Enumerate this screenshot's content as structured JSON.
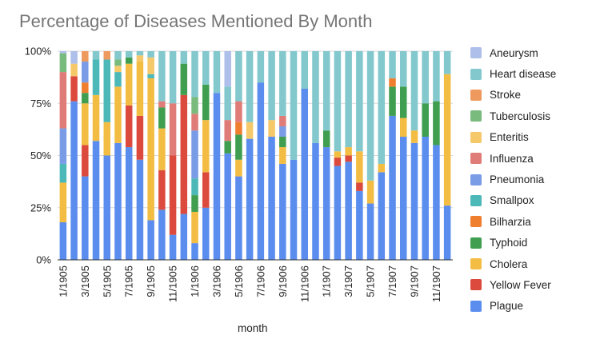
{
  "chart_data": {
    "type": "bar",
    "stacked": "percent",
    "title": "Percentage of Diseases Mentioned By Month",
    "xlabel": "month",
    "ylabel": "",
    "ylim": [
      0,
      100
    ],
    "y_ticks": [
      "0%",
      "25%",
      "50%",
      "75%",
      "100%"
    ],
    "x_tick_labels": [
      "1/1905",
      "3/1905",
      "5/1905",
      "7/1905",
      "9/1905",
      "11/1905",
      "1/1906",
      "3/1906",
      "5/1906",
      "7/1906",
      "9/1906",
      "11/1906",
      "1/1907",
      "3/1907",
      "5/1907",
      "7/1907",
      "9/1907",
      "11/1907"
    ],
    "categories": [
      "1/1905",
      "2/1905",
      "3/1905",
      "4/1905",
      "5/1905",
      "6/1905",
      "7/1905",
      "8/1905",
      "9/1905",
      "10/1905",
      "11/1905",
      "12/1905",
      "1/1906",
      "2/1906",
      "3/1906",
      "4/1906",
      "5/1906",
      "6/1906",
      "7/1906",
      "8/1906",
      "9/1906",
      "10/1906",
      "11/1906",
      "12/1906",
      "1/1907",
      "2/1907",
      "3/1907",
      "4/1907",
      "5/1907",
      "6/1907",
      "7/1907",
      "8/1907",
      "9/1907",
      "10/1907",
      "11/1907",
      "12/1907"
    ],
    "legend_position": "right",
    "grid": true,
    "series": [
      {
        "name": "Plague",
        "color": "#5b8def",
        "values": [
          18,
          76,
          40,
          57,
          50,
          56,
          54,
          48,
          19,
          24,
          12,
          22,
          8,
          25,
          80,
          51,
          40,
          58,
          85,
          59,
          46,
          48,
          82,
          56,
          54,
          45,
          47,
          33,
          27,
          42,
          69,
          59,
          56,
          59,
          55,
          26
        ]
      },
      {
        "name": "Yellow Fever",
        "color": "#dc4a3d",
        "values": [
          0,
          12,
          15,
          0,
          0,
          0,
          20,
          21,
          0,
          19,
          38,
          57,
          0,
          17,
          0,
          0,
          0,
          0,
          0,
          0,
          0,
          0,
          0,
          0,
          0,
          4,
          3,
          4,
          0,
          0,
          0,
          0,
          0,
          0,
          0,
          0
        ]
      },
      {
        "name": "Cholera",
        "color": "#f2bd42",
        "values": [
          19,
          0,
          20,
          22,
          16,
          27,
          20,
          26,
          68,
          20,
          0,
          0,
          15,
          25,
          0,
          0,
          8,
          0,
          0,
          0,
          8,
          0,
          0,
          0,
          0,
          3,
          4,
          15,
          11,
          4,
          0,
          9,
          6,
          0,
          0,
          63
        ]
      },
      {
        "name": "Typhoid",
        "color": "#3f9e50",
        "values": [
          0,
          0,
          5,
          0,
          0,
          0,
          3,
          0,
          0,
          10,
          0,
          15,
          8,
          17,
          0,
          6,
          12,
          0,
          0,
          0,
          5,
          0,
          0,
          0,
          8,
          0,
          0,
          0,
          0,
          0,
          14,
          15,
          0,
          16,
          21,
          0
        ]
      },
      {
        "name": "Bilharzia",
        "color": "#f07e2f",
        "values": [
          0,
          0,
          5,
          0,
          0,
          0,
          0,
          0,
          0,
          0,
          0,
          0,
          0,
          0,
          0,
          0,
          6,
          0,
          0,
          0,
          0,
          0,
          0,
          0,
          0,
          0,
          0,
          0,
          0,
          0,
          4,
          0,
          0,
          0,
          0,
          0
        ]
      },
      {
        "name": "Smallpox",
        "color": "#4cb8b8",
        "values": [
          9,
          0,
          0,
          17,
          30,
          7,
          0,
          0,
          2,
          0,
          0,
          0,
          8,
          0,
          0,
          0,
          0,
          0,
          0,
          0,
          0,
          0,
          0,
          0,
          0,
          0,
          0,
          0,
          0,
          0,
          0,
          0,
          0,
          0,
          0,
          0
        ]
      },
      {
        "name": "Pneumonia",
        "color": "#7a9ce6",
        "values": [
          17,
          0,
          10,
          0,
          0,
          0,
          0,
          0,
          0,
          0,
          0,
          0,
          23,
          0,
          0,
          0,
          0,
          0,
          0,
          0,
          5,
          0,
          0,
          0,
          0,
          0,
          0,
          0,
          0,
          0,
          0,
          0,
          0,
          0,
          0,
          0
        ]
      },
      {
        "name": "Influenza",
        "color": "#e07c78",
        "values": [
          27,
          0,
          0,
          0,
          0,
          0,
          0,
          0,
          0,
          3,
          25,
          0,
          8,
          0,
          0,
          10,
          10,
          0,
          0,
          0,
          5,
          0,
          0,
          0,
          0,
          0,
          0,
          0,
          0,
          0,
          0,
          0,
          0,
          0,
          0,
          0
        ]
      },
      {
        "name": "Enteritis",
        "color": "#f5c96a",
        "values": [
          0,
          6,
          0,
          0,
          0,
          3,
          0,
          3,
          8,
          0,
          0,
          0,
          0,
          0,
          0,
          0,
          0,
          8,
          0,
          8,
          0,
          0,
          0,
          0,
          0,
          0,
          0,
          0,
          0,
          0,
          0,
          0,
          0,
          0,
          0,
          0
        ]
      },
      {
        "name": "Tuberculosis",
        "color": "#79bb7d",
        "values": [
          9,
          0,
          0,
          0,
          0,
          3,
          0,
          0,
          0,
          0,
          0,
          0,
          8,
          0,
          0,
          0,
          0,
          0,
          0,
          0,
          0,
          0,
          0,
          0,
          0,
          0,
          0,
          0,
          0,
          0,
          0,
          0,
          0,
          0,
          0,
          0
        ]
      },
      {
        "name": "Stroke",
        "color": "#ee9a5e",
        "values": [
          0,
          0,
          5,
          0,
          4,
          0,
          0,
          0,
          0,
          0,
          0,
          0,
          0,
          0,
          0,
          0,
          0,
          0,
          0,
          0,
          0,
          0,
          0,
          0,
          0,
          0,
          0,
          0,
          0,
          0,
          0,
          0,
          0,
          0,
          0,
          0
        ]
      },
      {
        "name": "Heart disease",
        "color": "#82c8cd",
        "values": [
          0,
          0,
          0,
          4,
          0,
          4,
          3,
          2,
          3,
          24,
          25,
          6,
          22,
          16,
          20,
          16,
          24,
          34,
          15,
          33,
          31,
          52,
          18,
          44,
          38,
          48,
          46,
          48,
          62,
          54,
          13,
          17,
          38,
          25,
          24,
          11
        ]
      },
      {
        "name": "Aneurysm",
        "color": "#aebfe9",
        "values": [
          1,
          6,
          0,
          0,
          0,
          0,
          0,
          0,
          0,
          0,
          0,
          0,
          0,
          0,
          0,
          17,
          0,
          0,
          0,
          0,
          0,
          0,
          0,
          0,
          0,
          0,
          0,
          0,
          0,
          0,
          0,
          0,
          0,
          0,
          0,
          0
        ]
      }
    ]
  }
}
